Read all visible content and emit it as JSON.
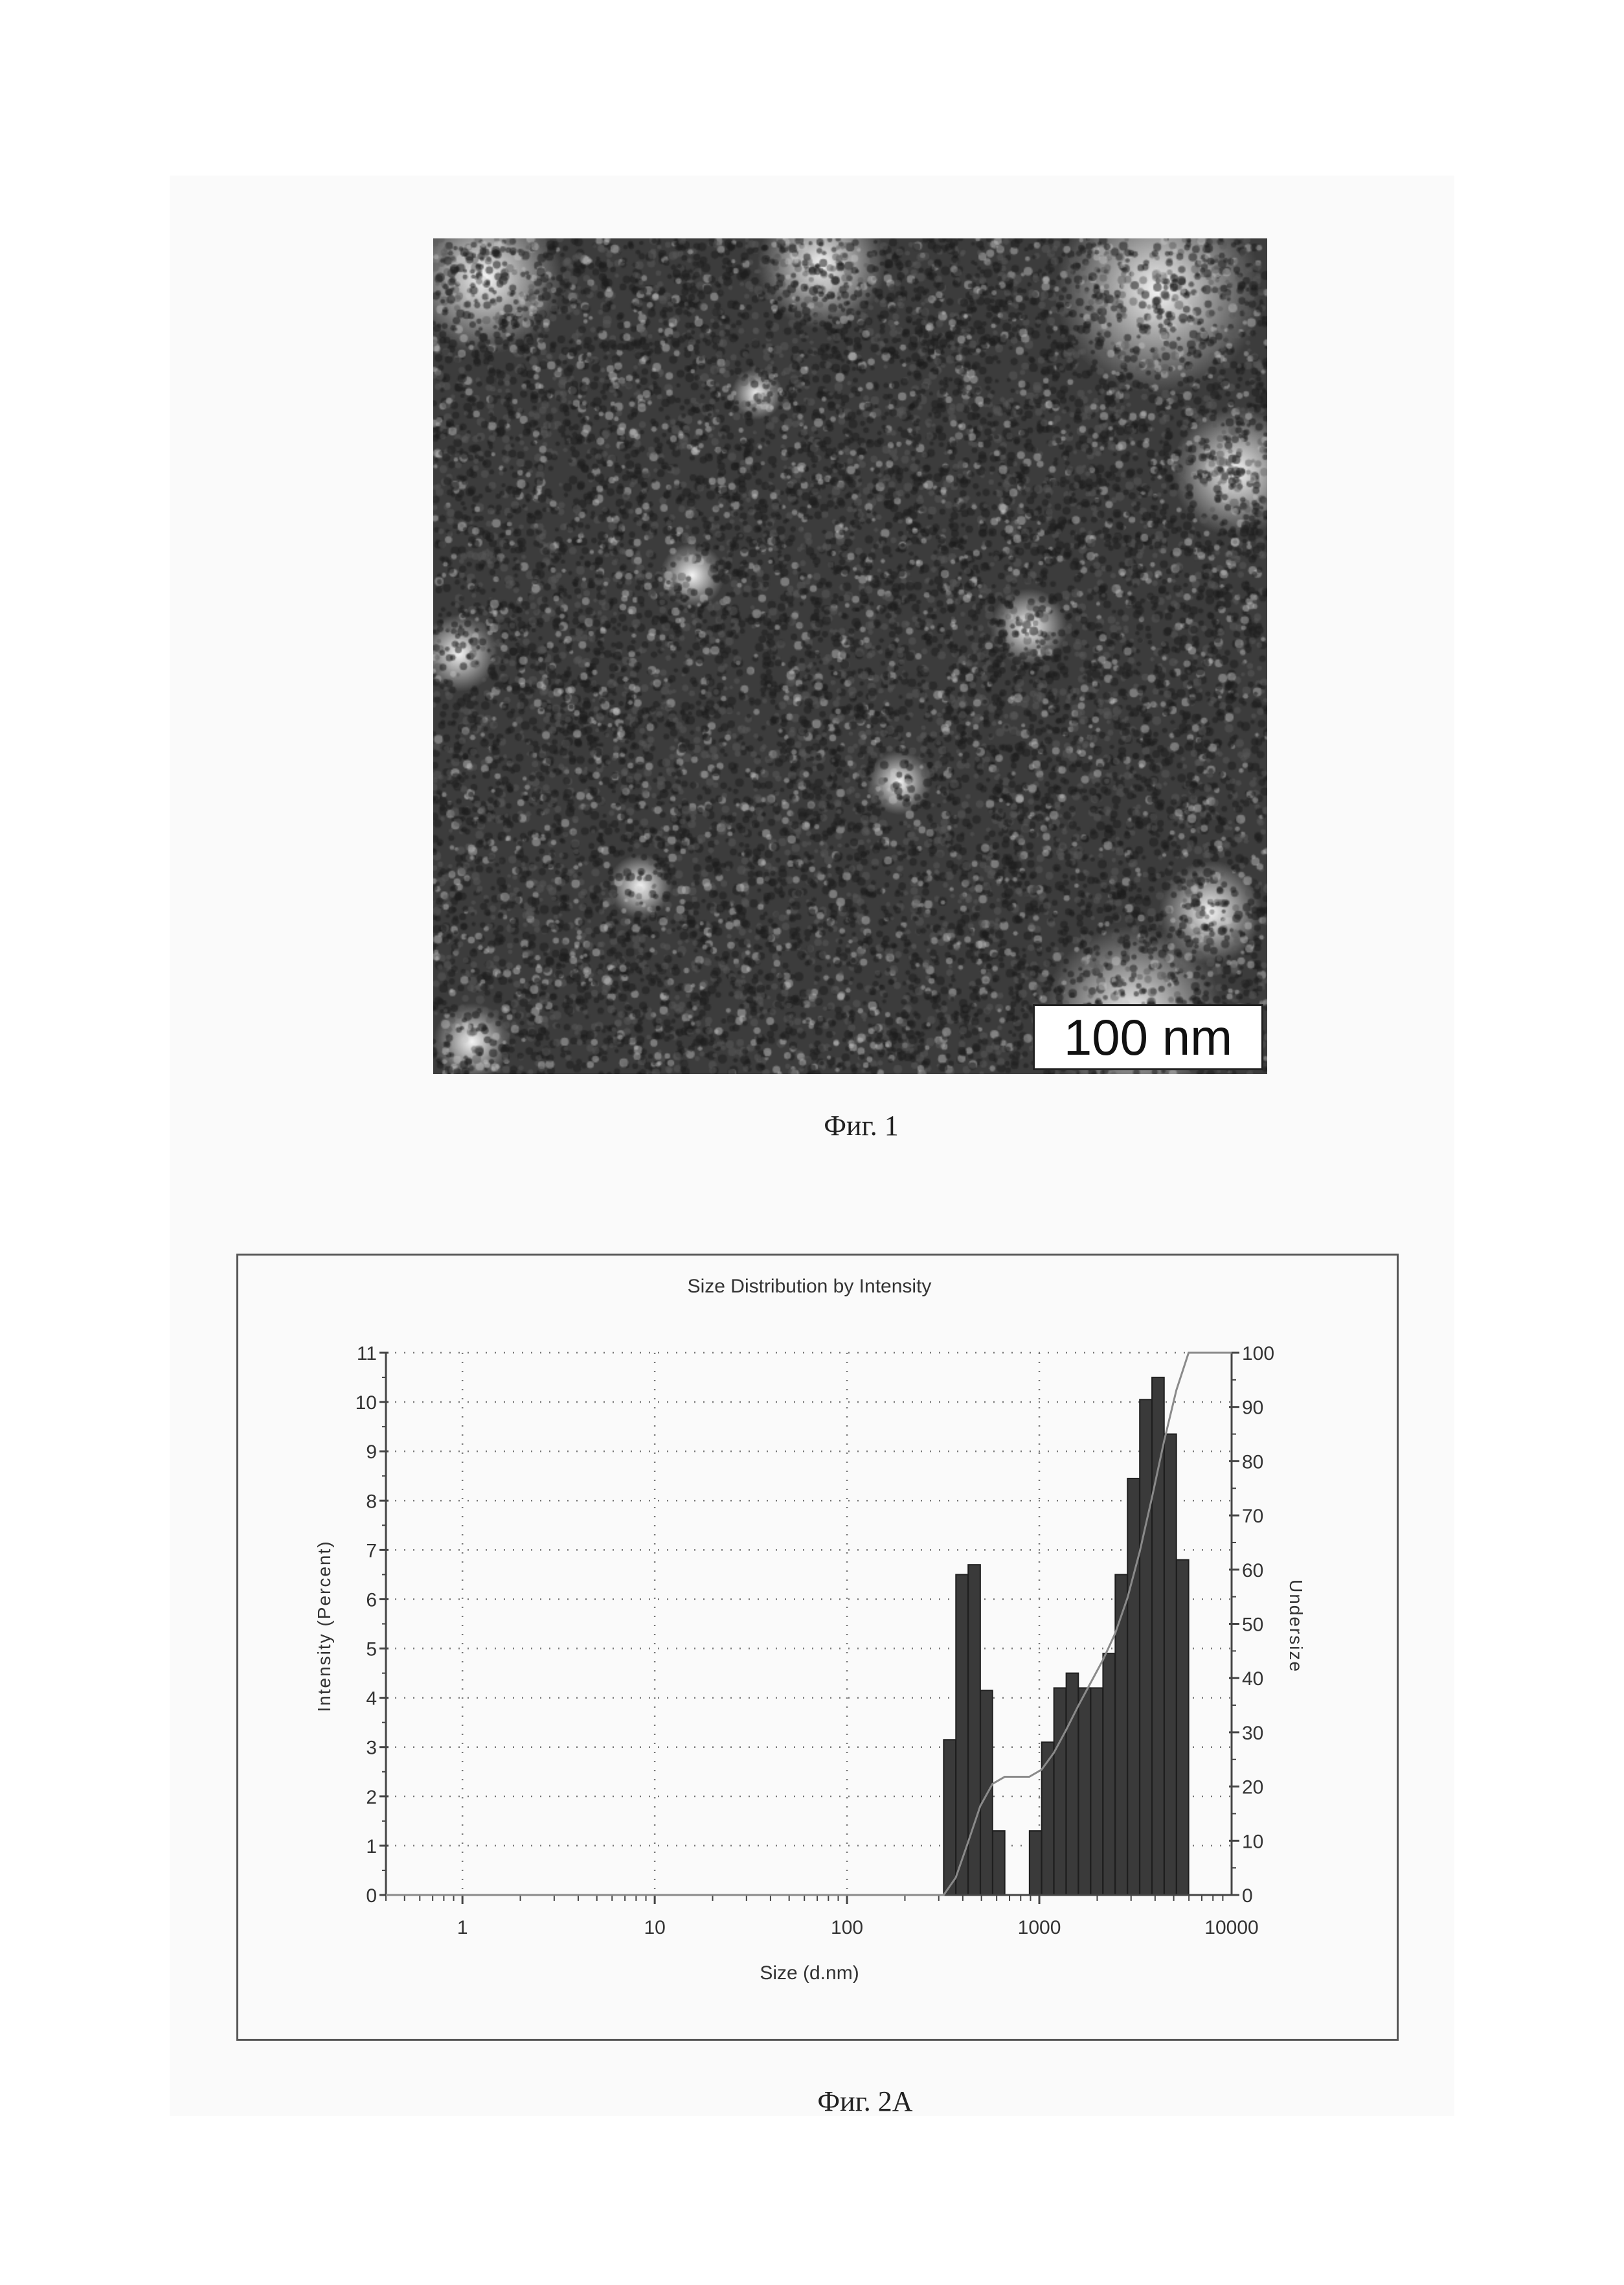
{
  "figure1": {
    "caption": "Фиг. 1",
    "scale_bar_label": "100 nm"
  },
  "figure2a": {
    "caption": "Фиг. 2А"
  },
  "chart_data": {
    "type": "bar",
    "title": "Size Distribution by Intensity",
    "xlabel": "Size (d.nm)",
    "ylabel": "Intensity (Percent)",
    "y2label": "Undersize",
    "xscale": "log",
    "xlim": [
      0.4,
      10000
    ],
    "ylim": [
      0,
      11
    ],
    "y2lim": [
      0,
      100
    ],
    "xticks": [
      "1",
      "10",
      "100",
      "1000",
      "10000"
    ],
    "xtick_values": [
      1,
      10,
      100,
      1000,
      10000
    ],
    "yticks": [
      "0",
      "1",
      "2",
      "3",
      "4",
      "5",
      "6",
      "7",
      "8",
      "9",
      "10",
      "11"
    ],
    "y2ticks": [
      "0",
      "10",
      "20",
      "30",
      "40",
      "50",
      "60",
      "70",
      "80",
      "90",
      "100"
    ],
    "grid": true,
    "bar_color": "#3a3a3a",
    "line_color": "#8a8a8a",
    "sizes": [
      342,
      396.1,
      458.7,
      531.2,
      615.1,
      712.4,
      825,
      955.4,
      1106,
      1281,
      1484,
      1718,
      1990,
      2305,
      2669,
      3091,
      3580,
      4145,
      4801,
      5560
    ],
    "series": [
      {
        "values": [
          3.15,
          6.5,
          6.7,
          4.15,
          1.3,
          0,
          0,
          1.3,
          3.1,
          4.2,
          4.5,
          4.2,
          4.2,
          4.9,
          6.5,
          8.45,
          10.05,
          10.5,
          9.35,
          6.8
        ]
      },
      {
        "type": "line",
        "axis": "right",
        "values": [
          3.2,
          9.7,
          16.4,
          20.5,
          21.8,
          21.8,
          21.8,
          23.1,
          26.2,
          30.4,
          34.9,
          39.1,
          43.3,
          48.2,
          54.7,
          63.2,
          73.2,
          83.7,
          93.1,
          100
        ]
      }
    ]
  }
}
